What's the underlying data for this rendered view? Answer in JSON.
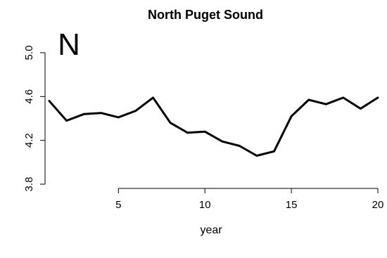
{
  "chart_data": {
    "type": "line",
    "title": "North Puget Sound",
    "panel_label": "N",
    "xlabel": "year",
    "ylabel": "",
    "xlim": [
      1,
      20
    ],
    "ylim": [
      3.8,
      5.0
    ],
    "x_ticks": [
      5,
      10,
      15,
      20
    ],
    "x_tick_labels": [
      "5",
      "10",
      "15",
      "20"
    ],
    "y_ticks": [
      3.8,
      4.2,
      4.6,
      5.0
    ],
    "y_tick_labels": [
      "3.8",
      "4.2",
      "4.6",
      "5.0"
    ],
    "grid": false,
    "line_color": "#000000",
    "series": [
      {
        "x": [
          1,
          2,
          3,
          4,
          5,
          6,
          7,
          8,
          9,
          10,
          11,
          12,
          13,
          14,
          15,
          16,
          17,
          18,
          19,
          20
        ],
        "values": [
          4.56,
          4.38,
          4.44,
          4.45,
          4.41,
          4.47,
          4.59,
          4.36,
          4.27,
          4.28,
          4.19,
          4.15,
          4.06,
          4.1,
          4.42,
          4.57,
          4.53,
          4.59,
          4.49,
          4.59
        ]
      }
    ]
  }
}
